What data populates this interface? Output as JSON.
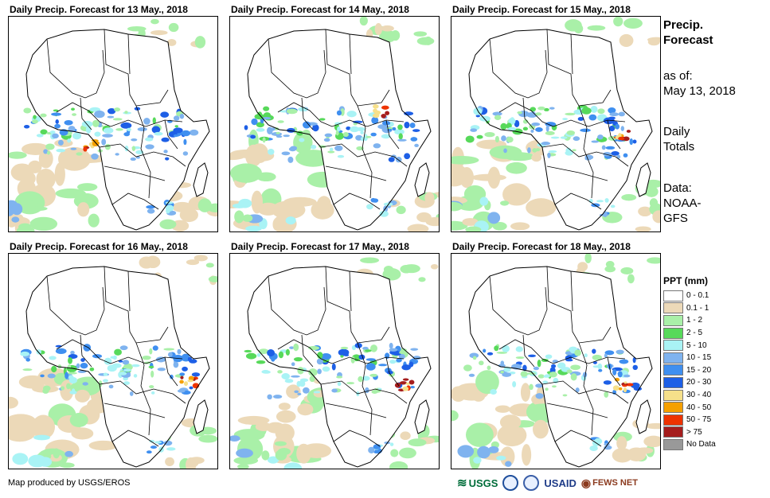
{
  "panels": [
    {
      "title": "Daily Precip. Forecast for 13 May., 2018",
      "pattern": 0
    },
    {
      "title": "Daily Precip. Forecast for 14 May., 2018",
      "pattern": 1
    },
    {
      "title": "Daily Precip. Forecast for 15 May., 2018",
      "pattern": 2
    },
    {
      "title": "Daily Precip. Forecast for 16 May., 2018",
      "pattern": 3
    },
    {
      "title": "Daily Precip. Forecast for 17 May., 2018",
      "pattern": 4
    },
    {
      "title": "Daily Precip. Forecast for 18 May., 2018",
      "pattern": 5
    }
  ],
  "sidebar": {
    "heading_line1": "Precip.",
    "heading_line2": "Forecast",
    "asof_label": "as of:",
    "asof_date": "May 13, 2018",
    "daily_line1": "Daily",
    "daily_line2": "Totals",
    "data_label": "Data:",
    "data_line1": "NOAA-",
    "data_line2": "GFS"
  },
  "legend": {
    "title": "PPT (mm)",
    "items": [
      {
        "label": "0 - 0.1",
        "color": "#ffffff"
      },
      {
        "label": "0.1 - 1",
        "color": "#ecd9b8"
      },
      {
        "label": "1 - 2",
        "color": "#a9f0a8"
      },
      {
        "label": "2 - 5",
        "color": "#57d95a"
      },
      {
        "label": "5 - 10",
        "color": "#a9f3f5"
      },
      {
        "label": "10 - 15",
        "color": "#7fb3ef"
      },
      {
        "label": "15 - 20",
        "color": "#3f8ff0"
      },
      {
        "label": "20 - 30",
        "color": "#1d5fe6"
      },
      {
        "label": "30 - 40",
        "color": "#f6e08a"
      },
      {
        "label": "40 - 50",
        "color": "#f5a000"
      },
      {
        "label": "50 - 75",
        "color": "#ee3300"
      },
      {
        "label": "> 75",
        "color": "#a51d1d"
      },
      {
        "label": "No Data",
        "color": "#999999"
      }
    ]
  },
  "footer": {
    "credit": "Map produced by USGS/EROS"
  },
  "logos": {
    "usgs": "USGS",
    "usaid": "USAID",
    "fews": "FEWS NET"
  }
}
